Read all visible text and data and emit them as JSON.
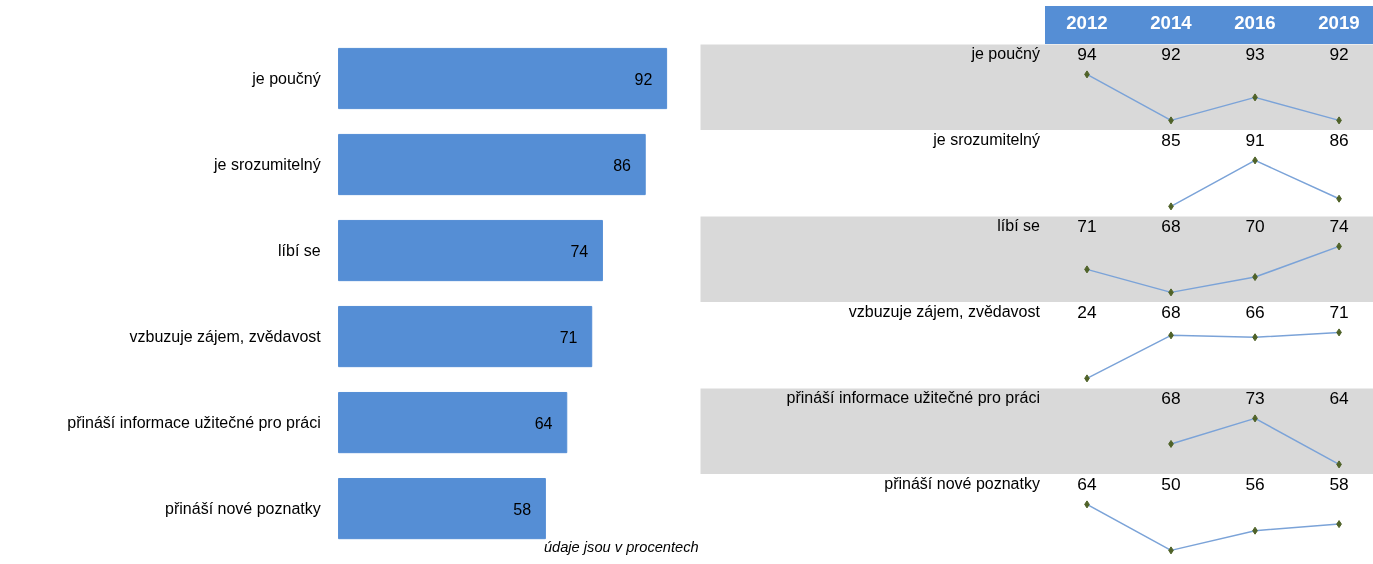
{
  "chart_data": [
    {
      "type": "bar",
      "orientation": "horizontal",
      "categories": [
        "je poučný",
        "je srozumitelný",
        "líbí se",
        "vzbuzuje zájem, zvědavost",
        "přináší informace užitečné pro práci",
        "přináší nové poznatky"
      ],
      "values": [
        92,
        86,
        74,
        71,
        64,
        58
      ],
      "value_labels": [
        "92",
        "86",
        "74",
        "71",
        "64",
        "58"
      ],
      "color": "#558ed5",
      "annotations": [
        "údaje jsou v procentech"
      ]
    },
    {
      "type": "line",
      "title": "je poučný",
      "categories": [
        "2012",
        "2014",
        "2016",
        "2019"
      ],
      "values": [
        94,
        92,
        93,
        92
      ],
      "value_labels": [
        "94",
        "92",
        "93",
        "92"
      ],
      "color": "#7ba3d8",
      "marker": "diamond",
      "tick_labels": "x"
    },
    {
      "type": "line",
      "title": "je srozumitelný",
      "categories": [
        "2012",
        "2014",
        "2016",
        "2019"
      ],
      "values": [
        null,
        85,
        91,
        86
      ],
      "value_labels": [
        null,
        "85",
        "91",
        "86"
      ],
      "color": "#7ba3d8",
      "marker": "diamond",
      "tick_labels": false
    },
    {
      "type": "line",
      "title": "líbí se",
      "categories": [
        "2012",
        "2014",
        "2016",
        "2019"
      ],
      "values": [
        71,
        68,
        70,
        74
      ],
      "value_labels": [
        "71",
        "68",
        "70",
        "74"
      ],
      "color": "#7ba3d8",
      "marker": "diamond",
      "tick_labels": false
    },
    {
      "type": "line",
      "title": "vzbuzuje zájem, zvědavost",
      "categories": [
        "2012",
        "2014",
        "2016",
        "2019"
      ],
      "values": [
        24,
        68,
        66,
        71
      ],
      "value_labels": [
        "24",
        "68",
        "66",
        "71"
      ],
      "color": "#7ba3d8",
      "marker": "diamond",
      "tick_labels": false
    },
    {
      "type": "line",
      "title": "přináší informace užitečné pro práci",
      "categories": [
        "2012",
        "2014",
        "2016",
        "2019"
      ],
      "values": [
        null,
        68,
        73,
        64
      ],
      "value_labels": [
        null,
        "68",
        "73",
        "64"
      ],
      "color": "#7ba3d8",
      "marker": "diamond",
      "tick_labels": false
    },
    {
      "type": "line",
      "title": "přináší nové poznatky",
      "categories": [
        "2012",
        "2014",
        "2016",
        "2019"
      ],
      "values": [
        64,
        50,
        56,
        58
      ],
      "value_labels": [
        "64",
        "50",
        "56",
        "58"
      ],
      "color": "#7ba3d8",
      "marker": "diamond",
      "tick_labels": false
    }
  ]
}
